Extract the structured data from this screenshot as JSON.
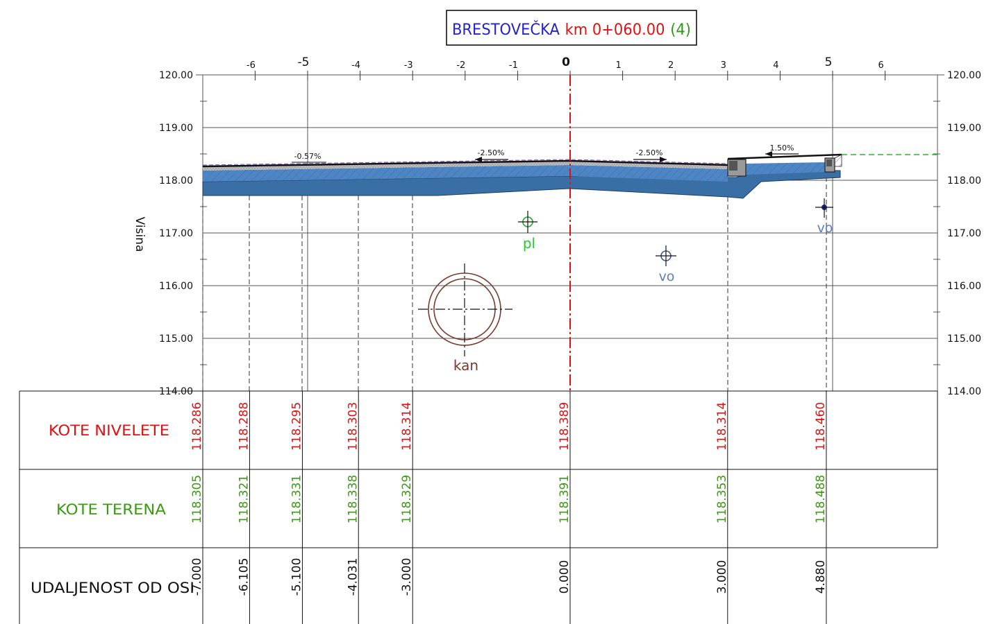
{
  "title": {
    "road": "BRESTOVEČKA",
    "chainage": "km 0+060.00",
    "section_no": "(4)",
    "colors": {
      "road": "#2222cc",
      "chainage": "#e01010",
      "section_no": "#2a9a10"
    }
  },
  "axes": {
    "top_ticks": [
      "-6",
      "-5",
      "-4",
      "-3",
      "-2",
      "-1",
      "0",
      "1",
      "2",
      "3",
      "4",
      "5",
      "6"
    ],
    "elevation_ticks": [
      "120.00",
      "119.00",
      "118.00",
      "117.00",
      "116.00",
      "115.00",
      "114.00"
    ],
    "elevation_label": "Visina"
  },
  "slopes": {
    "left_outer": "-0.57%",
    "left_inner": "-2.50%",
    "right_inner": "-2.50%",
    "right_outer": "1.50%"
  },
  "utilities": {
    "pl": "pl",
    "vo_1": "vo",
    "vo_2": "vo",
    "kan": "kan",
    "colors": {
      "pl": "#22cc22",
      "vo": "#5a7fc0",
      "kan": "#7a3a2a"
    }
  },
  "table": {
    "rows": {
      "kote_nivelete": "KOTE NIVELETE",
      "kote_terena": "KOTE TERENA",
      "udaljenost": "UDALJENOST OD OSI"
    },
    "row_colors": {
      "kote_nivelete": "#e01010",
      "kote_terena": "#3a9a10",
      "udaljenost": "#111111"
    },
    "columns": [
      {
        "offset": -7.0,
        "nivelete": "118.286",
        "terena": "118.305",
        "udaljenost": "-7.000"
      },
      {
        "offset": -6.105,
        "nivelete": "118.288",
        "terena": "118.321",
        "udaljenost": "-6.105"
      },
      {
        "offset": -5.1,
        "nivelete": "118.295",
        "terena": "118.331",
        "udaljenost": "-5.100"
      },
      {
        "offset": -4.031,
        "nivelete": "118.303",
        "terena": "118.338",
        "udaljenost": "-4.031"
      },
      {
        "offset": -3.0,
        "nivelete": "118.314",
        "terena": "118.329",
        "udaljenost": "-3.000"
      },
      {
        "offset": 0.0,
        "nivelete": "118.389",
        "terena": "118.391",
        "udaljenost": "0.000"
      },
      {
        "offset": 3.0,
        "nivelete": "118.314",
        "terena": "118.353",
        "udaljenost": "3.000"
      },
      {
        "offset": 4.88,
        "nivelete": "118.460",
        "terena": "118.488",
        "udaljenost": "4.880"
      }
    ]
  },
  "colors": {
    "pavement": "#3f78b4",
    "pavement_dark": "#2f5f8f",
    "hatch": "#7a4ab8",
    "axis_line": "#e01010",
    "terrain_line": "#22bb22",
    "grid": "#555555"
  }
}
